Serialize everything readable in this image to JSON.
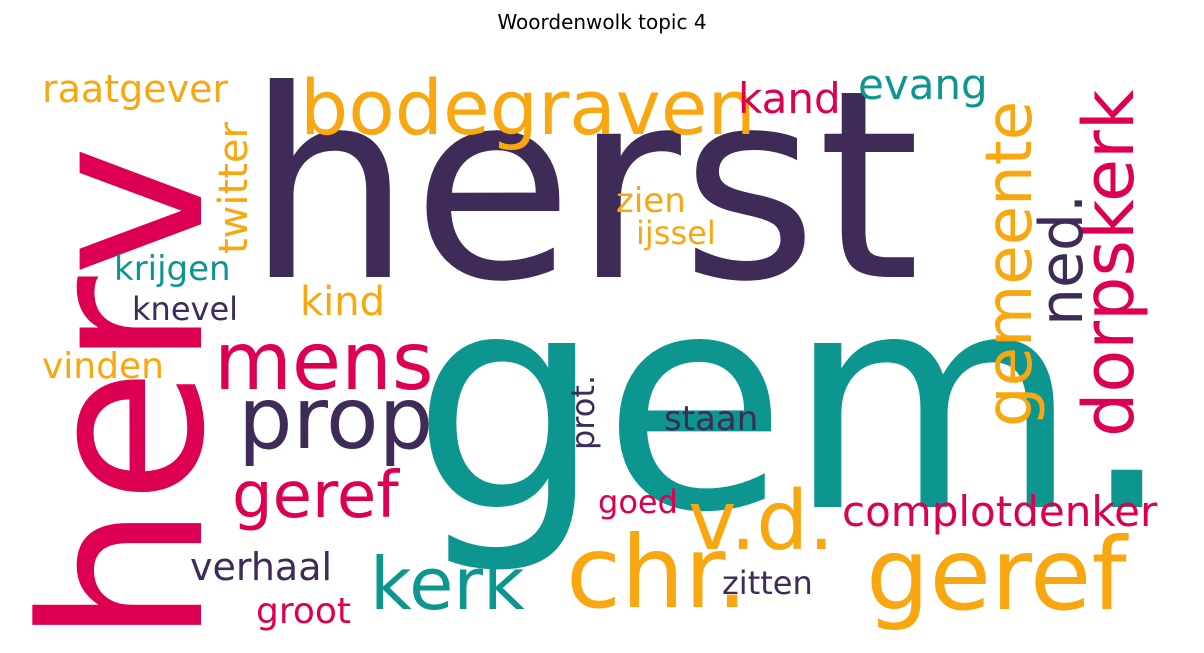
{
  "title": "Woordenwolk topic 4",
  "colors": {
    "purple": "#3f2b57",
    "teal": "#0d968f",
    "orange": "#f8a710",
    "crimson": "#dd0052"
  },
  "words": [
    {
      "text": "herst",
      "color": "purple"
    },
    {
      "text": "gem.",
      "color": "teal"
    },
    {
      "text": "herv",
      "color": "crimson"
    },
    {
      "text": "bodegraven",
      "color": "orange"
    },
    {
      "text": "chr.",
      "color": "orange"
    },
    {
      "text": "geref",
      "color": "orange"
    },
    {
      "text": "v.d.",
      "color": "orange"
    },
    {
      "text": "gemeente",
      "color": "orange"
    },
    {
      "text": "dorpskerk",
      "color": "crimson"
    },
    {
      "text": "ned.",
      "color": "purple"
    },
    {
      "text": "mens",
      "color": "crimson"
    },
    {
      "text": "prop",
      "color": "purple"
    },
    {
      "text": "geref",
      "color": "crimson"
    },
    {
      "text": "kerk",
      "color": "teal"
    },
    {
      "text": "complotdenker",
      "color": "crimson"
    },
    {
      "text": "kand",
      "color": "crimson"
    },
    {
      "text": "evang",
      "color": "teal"
    },
    {
      "text": "raatgever",
      "color": "orange"
    },
    {
      "text": "twitter",
      "color": "orange"
    },
    {
      "text": "krijgen",
      "color": "teal"
    },
    {
      "text": "knevel",
      "color": "purple"
    },
    {
      "text": "kind",
      "color": "orange"
    },
    {
      "text": "vinden",
      "color": "orange"
    },
    {
      "text": "zien",
      "color": "orange"
    },
    {
      "text": "ijssel",
      "color": "orange"
    },
    {
      "text": "prot.",
      "color": "purple"
    },
    {
      "text": "staan",
      "color": "purple"
    },
    {
      "text": "goed",
      "color": "crimson"
    },
    {
      "text": "verhaal",
      "color": "purple"
    },
    {
      "text": "groot",
      "color": "crimson"
    },
    {
      "text": "zitten",
      "color": "purple"
    }
  ]
}
